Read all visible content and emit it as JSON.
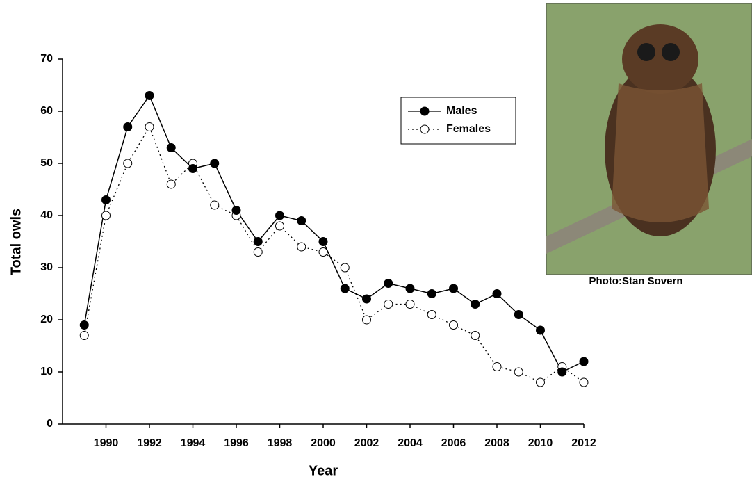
{
  "chart_data": {
    "type": "line",
    "x_label": "Year",
    "y_label": "Total owls",
    "x": [
      1989,
      1990,
      1991,
      1992,
      1993,
      1994,
      1995,
      1996,
      1997,
      1998,
      1999,
      2000,
      2001,
      2002,
      2003,
      2004,
      2005,
      2006,
      2007,
      2008,
      2009,
      2010,
      2011,
      2012
    ],
    "series": [
      {
        "name": "Males",
        "color": "#000000",
        "marker": "filled",
        "line_style": "solid",
        "values": [
          19,
          43,
          57,
          63,
          53,
          49,
          50,
          41,
          35,
          40,
          39,
          35,
          26,
          24,
          27,
          26,
          25,
          26,
          23,
          25,
          21,
          18,
          10,
          12
        ]
      },
      {
        "name": "Females",
        "color": "#000000",
        "marker": "open",
        "line_style": "dotted",
        "values": [
          17,
          40,
          50,
          57,
          46,
          50,
          42,
          40,
          33,
          38,
          34,
          33,
          30,
          20,
          23,
          23,
          21,
          19,
          17,
          11,
          10,
          8,
          11,
          8
        ]
      }
    ],
    "xlim": [
      1988,
      2012
    ],
    "xticks": [
      1990,
      1992,
      1994,
      1996,
      1998,
      2000,
      2002,
      2004,
      2006,
      2008,
      2010,
      2012
    ],
    "ylim": [
      0,
      70
    ],
    "yticks": [
      0,
      10,
      20,
      30,
      40,
      50,
      60,
      70
    ],
    "grid": false,
    "legend": "top-right",
    "photo_credit": "Photo:Stan Sovern"
  }
}
